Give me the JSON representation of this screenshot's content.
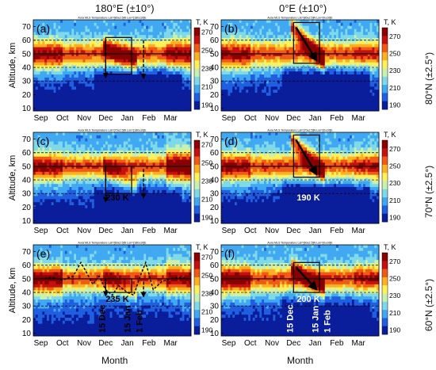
{
  "column_titles": [
    "180°E (±10°)",
    "0°E (±10°)"
  ],
  "row_labels": [
    "80°N (±2.5°)",
    "70°N (±2.5°)",
    "60°N (±2.5°)"
  ],
  "x_axis_label": "Month",
  "colors": {
    "scale": [
      "#0a1e9c",
      "#1f5fe0",
      "#41a8f2",
      "#7fd9e8",
      "#c8f0b0",
      "#fff15a",
      "#ffb020",
      "#f05a14",
      "#c4100e",
      "#8a0000"
    ],
    "box": "#000000",
    "arrow": "#000000"
  },
  "chart_data": [
    {
      "type": "heatmap",
      "panel": "(a)",
      "column": "180°E (±10°)",
      "row": "80°N (±2.5°)",
      "title": "Aura MLS Temperature      Lat=[80±2.5]N   Lon=[180±10]E",
      "xlabel": "",
      "ylabel": "Altitude, km",
      "x_ticks": [
        "Sep",
        "Oct",
        "Nov",
        "Dec",
        "Jan",
        "Feb",
        "Mar"
      ],
      "y_ticks": [
        10,
        20,
        30,
        40,
        50,
        60,
        70
      ],
      "ylim": [
        8,
        75
      ],
      "colorbar": {
        "label": "T, K",
        "ticks": [
          190,
          210,
          230,
          250,
          270
        ],
        "range": [
          185,
          275
        ]
      },
      "dashed_levels_km": [
        30,
        40,
        60
      ],
      "solid_level_km": 50,
      "box_months": [
        3.0,
        4.2
      ],
      "box_km": [
        35,
        62
      ],
      "annotations": []
    },
    {
      "type": "heatmap",
      "panel": "(b)",
      "column": "0°E (±10°)",
      "row": "80°N (±2.5°)",
      "title": "Aura MLS Temperature      Lat=[80±2.5]N   Lon=[0±10]E",
      "xlabel": "",
      "ylabel": "",
      "x_ticks": [
        "Sep",
        "Oct",
        "Nov",
        "Dec",
        "Jan",
        "Feb",
        "Mar"
      ],
      "y_ticks": [
        10,
        20,
        30,
        40,
        50,
        60,
        70
      ],
      "ylim": [
        8,
        75
      ],
      "colorbar": {
        "label": "T, K",
        "ticks": [
          190,
          210,
          230,
          250,
          270
        ],
        "range": [
          185,
          280
        ]
      },
      "dashed_levels_km": [
        30,
        40,
        60
      ],
      "solid_level_km": 50,
      "box_months": [
        3.0,
        4.2
      ],
      "box_km": [
        43,
        73
      ],
      "annotations": []
    },
    {
      "type": "heatmap",
      "panel": "(c)",
      "column": "180°E (±10°)",
      "row": "70°N (±2.5°)",
      "title": "Aura MLS Temperature      Lat=[70±2.5]N   Lon=[180±10]E",
      "xlabel": "",
      "ylabel": "Altitude, km",
      "x_ticks": [
        "Sep",
        "Oct",
        "Nov",
        "Dec",
        "Jan",
        "Feb",
        "Mar"
      ],
      "y_ticks": [
        10,
        20,
        30,
        40,
        50,
        60,
        70
      ],
      "ylim": [
        8,
        75
      ],
      "colorbar": {
        "label": "T, K",
        "ticks": [
          190,
          210,
          230,
          250,
          270
        ],
        "range": [
          185,
          275
        ]
      },
      "dashed_levels_km": [
        30,
        40,
        60
      ],
      "solid_level_km": 50,
      "box_months": [
        3.0,
        4.2
      ],
      "box_km": [
        30,
        50
      ],
      "annotations": [
        "230 K"
      ]
    },
    {
      "type": "heatmap",
      "panel": "(d)",
      "column": "0°E (±10°)",
      "row": "70°N (±2.5°)",
      "title": "Aura MLS Temperature      Lat=[70±2.5]N   Lon=[0±10]E",
      "xlabel": "",
      "ylabel": "",
      "x_ticks": [
        "Sep",
        "Oct",
        "Nov",
        "Dec",
        "Jan",
        "Feb",
        "Mar"
      ],
      "y_ticks": [
        10,
        20,
        30,
        40,
        50,
        60,
        70
      ],
      "ylim": [
        8,
        75
      ],
      "colorbar": {
        "label": "T, K",
        "ticks": [
          190,
          210,
          230,
          250,
          270
        ],
        "range": [
          185,
          280
        ]
      },
      "dashed_levels_km": [
        30,
        40,
        60
      ],
      "solid_level_km": 50,
      "box_months": [
        3.0,
        4.2
      ],
      "box_km": [
        42,
        73
      ],
      "annotations": [
        "190 K"
      ]
    },
    {
      "type": "heatmap",
      "panel": "(e)",
      "column": "180°E (±10°)",
      "row": "60°N (±2.5°)",
      "title": "Aura MLS Temperature      Lat=[60±2.5]N   Lon=[180±10]E",
      "xlabel": "Month",
      "ylabel": "Altitude, km",
      "x_ticks": [
        "Sep",
        "Oct",
        "Nov",
        "Dec",
        "Jan",
        "Feb",
        "Mar"
      ],
      "y_ticks": [
        10,
        20,
        30,
        40,
        50,
        60,
        70
      ],
      "ylim": [
        8,
        75
      ],
      "colorbar": {
        "label": "T, K",
        "ticks": [
          190,
          210,
          230,
          250,
          270
        ],
        "range": [
          185,
          275
        ]
      },
      "dashed_levels_km": [
        30,
        40,
        60
      ],
      "solid_level_km": 50,
      "box_months": [
        3.0,
        4.2
      ],
      "box_km": [
        40,
        50
      ],
      "annotations": [
        "235 K"
      ],
      "date_markers": [
        "15 Dec",
        "15 Jan",
        "1 Feb"
      ],
      "stratopause_months": [
        0,
        0.5,
        1.0,
        1.5,
        1.85,
        2.1,
        2.4,
        2.7,
        3.0,
        3.3,
        3.6,
        4.0,
        4.3,
        4.6,
        4.85,
        5.2,
        5.6,
        6.0,
        6.5,
        6.8
      ],
      "stratopause_km": [
        50,
        51,
        49,
        52,
        62,
        55,
        46,
        52,
        42,
        38,
        45,
        40,
        38,
        52,
        62,
        42,
        48,
        50,
        51,
        50
      ]
    },
    {
      "type": "heatmap",
      "panel": "(f)",
      "column": "0°E (±10°)",
      "row": "60°N (±2.5°)",
      "title": "Aura MLS Temperature      Lat=[60±2.5]N   Lon=[0±10]E",
      "xlabel": "Month",
      "ylabel": "",
      "x_ticks": [
        "Sep",
        "Oct",
        "Nov",
        "Dec",
        "Jan",
        "Feb",
        "Mar"
      ],
      "y_ticks": [
        10,
        20,
        30,
        40,
        50,
        60,
        70
      ],
      "ylim": [
        8,
        75
      ],
      "colorbar": {
        "label": "T, K",
        "ticks": [
          190,
          210,
          230,
          250,
          270
        ],
        "range": [
          185,
          280
        ]
      },
      "dashed_levels_km": [
        30,
        40,
        60
      ],
      "solid_level_km": 50,
      "box_months": [
        3.0,
        4.2
      ],
      "box_km": [
        40,
        62
      ],
      "annotations": [
        "200 K"
      ],
      "date_markers": [
        "15 Dec",
        "15 Jan",
        "1 Feb"
      ]
    }
  ]
}
